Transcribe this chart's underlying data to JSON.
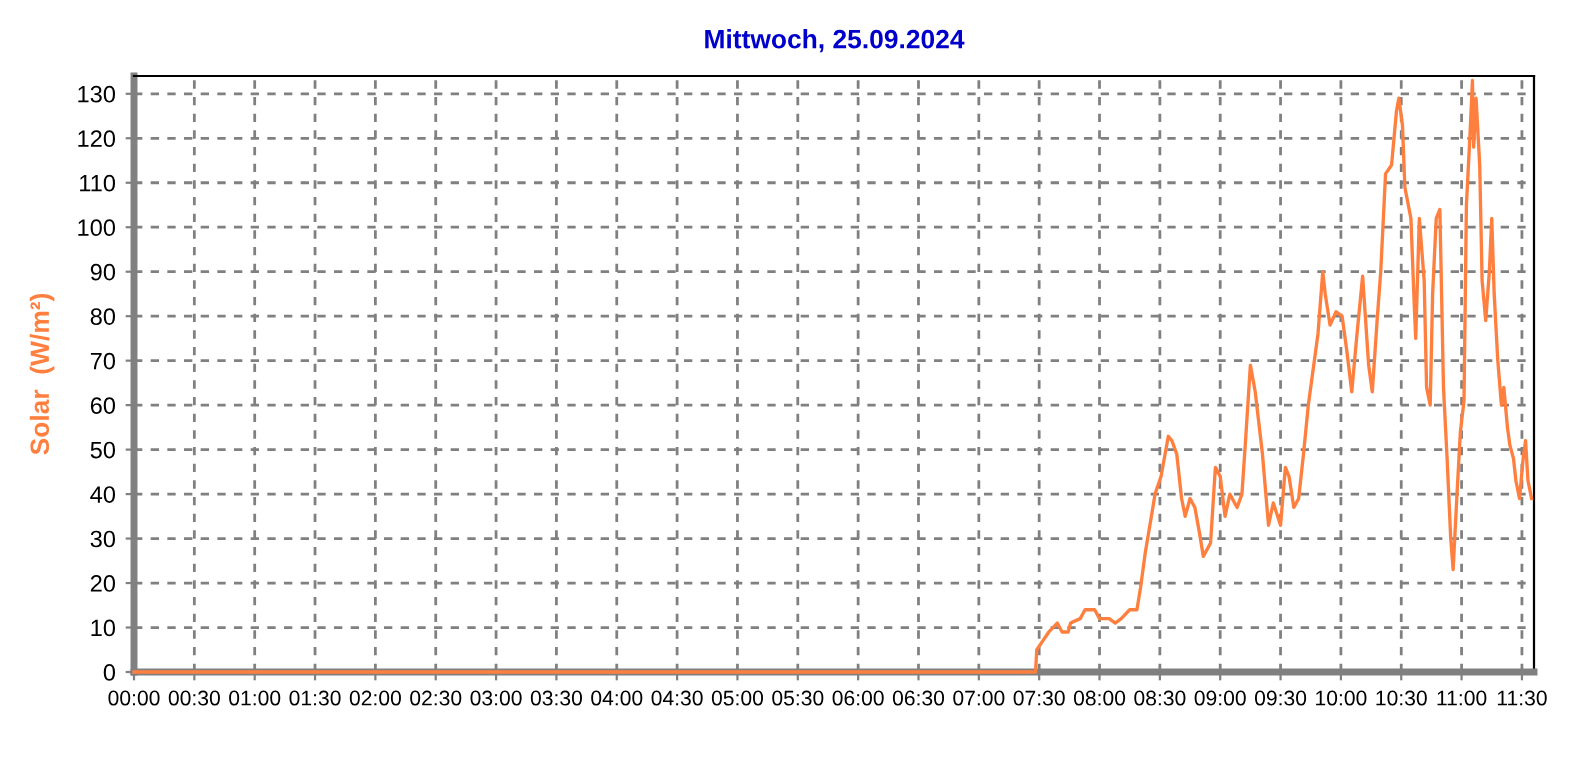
{
  "chart_data": {
    "type": "line",
    "title": "Mittwoch, 25.09.2024",
    "ylabel": "Solar  (W/m²)",
    "xlim": [
      0,
      11.6
    ],
    "ylim": [
      0,
      134
    ],
    "xticks": [
      {
        "value": 0,
        "label": "00:00"
      },
      {
        "value": 0.5,
        "label": "00:30"
      },
      {
        "value": 1,
        "label": "01:00"
      },
      {
        "value": 1.5,
        "label": "01:30"
      },
      {
        "value": 2,
        "label": "02:00"
      },
      {
        "value": 2.5,
        "label": "02:30"
      },
      {
        "value": 3,
        "label": "03:00"
      },
      {
        "value": 3.5,
        "label": "03:30"
      },
      {
        "value": 4,
        "label": "04:00"
      },
      {
        "value": 4.5,
        "label": "04:30"
      },
      {
        "value": 5,
        "label": "05:00"
      },
      {
        "value": 5.5,
        "label": "05:30"
      },
      {
        "value": 6,
        "label": "06:00"
      },
      {
        "value": 6.5,
        "label": "06:30"
      },
      {
        "value": 7,
        "label": "07:00"
      },
      {
        "value": 7.5,
        "label": "07:30"
      },
      {
        "value": 8,
        "label": "08:00"
      },
      {
        "value": 8.5,
        "label": "08:30"
      },
      {
        "value": 9,
        "label": "09:00"
      },
      {
        "value": 9.5,
        "label": "09:30"
      },
      {
        "value": 10,
        "label": "10:00"
      },
      {
        "value": 10.5,
        "label": "10:30"
      },
      {
        "value": 11,
        "label": "11:00"
      },
      {
        "value": 11.5,
        "label": "11:30"
      }
    ],
    "yticks": [
      0,
      10,
      20,
      30,
      40,
      50,
      60,
      70,
      80,
      90,
      100,
      110,
      120,
      130
    ],
    "grid": true,
    "line_style": "solid",
    "marker": "none",
    "series": [
      {
        "color": "#ff7f3f",
        "x": [
          0,
          7.47,
          7.48,
          7.53,
          7.58,
          7.65,
          7.69,
          7.74,
          7.76,
          7.84,
          7.88,
          7.96,
          8.0,
          8.08,
          8.13,
          8.18,
          8.25,
          8.31,
          8.34,
          8.38,
          8.43,
          8.46,
          8.51,
          8.57,
          8.6,
          8.64,
          8.68,
          8.71,
          8.75,
          8.79,
          8.83,
          8.86,
          8.92,
          8.96,
          9.0,
          9.04,
          9.08,
          9.14,
          9.18,
          9.21,
          9.25,
          9.29,
          9.35,
          9.4,
          9.44,
          9.5,
          9.54,
          9.57,
          9.61,
          9.65,
          9.69,
          9.73,
          9.76,
          9.81,
          9.85,
          9.87,
          9.91,
          9.96,
          10.01,
          10.05,
          10.09,
          10.13,
          10.18,
          10.2,
          10.23,
          10.26,
          10.3,
          10.33,
          10.37,
          10.42,
          10.46,
          10.48,
          10.51,
          10.53,
          10.58,
          10.61,
          10.62,
          10.65,
          10.69,
          10.71,
          10.74,
          10.76,
          10.79,
          10.82,
          10.85,
          10.88,
          10.91,
          10.93,
          10.96,
          10.99,
          11.02,
          11.04,
          11.07,
          11.09,
          11.1,
          11.12,
          11.15,
          11.17,
          11.2,
          11.23,
          11.25,
          11.27,
          11.3,
          11.33,
          11.35,
          11.38,
          11.4,
          11.43,
          11.45,
          11.48,
          11.51,
          11.53,
          11.55,
          11.58
        ],
        "values": [
          0,
          0,
          5,
          7,
          9,
          11,
          9,
          9,
          11,
          12,
          14,
          14,
          12,
          12,
          11,
          12,
          14,
          14,
          19,
          27,
          35,
          40,
          44,
          53,
          52,
          49,
          39,
          35,
          39,
          37,
          31,
          26,
          29,
          46,
          44,
          35,
          40,
          37,
          40,
          52,
          69,
          63,
          49,
          33,
          38,
          33,
          46,
          44,
          37,
          39,
          49,
          60,
          66,
          76,
          90,
          85,
          78,
          81,
          80,
          72,
          63,
          75,
          89,
          81,
          69,
          63,
          79,
          90,
          112,
          114,
          126,
          129,
          123,
          109,
          102,
          81,
          75,
          102,
          88,
          64,
          60,
          85,
          102,
          104,
          64,
          48,
          30,
          23,
          39,
          54,
          61,
          105,
          121,
          133,
          118,
          129,
          114,
          88,
          79,
          90,
          102,
          85,
          70,
          60,
          64,
          55,
          51,
          48,
          43,
          39,
          48,
          52,
          43,
          39
        ]
      }
    ]
  }
}
